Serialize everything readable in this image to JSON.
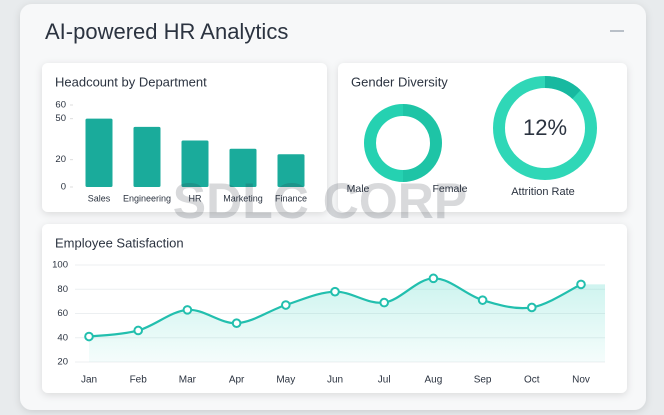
{
  "title": "AI-powered HR Analytics",
  "watermark": "SDLC CORP",
  "chart_data": [
    {
      "type": "bar",
      "title": "Headcount by Department",
      "categories": [
        "Sales",
        "Engineering",
        "HR",
        "Marketing",
        "Finance"
      ],
      "values": [
        50,
        44,
        34,
        28,
        24
      ],
      "color": "#1aab9b",
      "ylim": [
        0,
        60
      ],
      "yticks": [
        0,
        20,
        50,
        60
      ]
    },
    {
      "type": "pie",
      "title": "Gender Diversity",
      "categories": [
        "Male",
        "Female"
      ],
      "values": [
        50,
        50
      ],
      "colors": [
        "#1ec4a6",
        "#25d1b1"
      ]
    },
    {
      "type": "donut",
      "label": "Attrition Rate",
      "values": [
        12
      ],
      "value_labels": [
        "12%"
      ],
      "color": "#17b9a0",
      "track_color": "#2fd7b7"
    },
    {
      "type": "line",
      "title": "Employee Satisfaction",
      "categories": [
        "Jan",
        "Feb",
        "Mar",
        "Apr",
        "May",
        "Jun",
        "Jul",
        "Aug",
        "Sep",
        "Oct",
        "Nov"
      ],
      "series": [
        {
          "name": "Satisfaction",
          "color": "#22bfae",
          "values": [
            41,
            46,
            63,
            52,
            67,
            78,
            69,
            89,
            71,
            65,
            84
          ]
        }
      ],
      "ylim": [
        20,
        100
      ],
      "yticks": [
        20,
        40,
        60,
        80,
        100
      ],
      "grid": true
    }
  ]
}
